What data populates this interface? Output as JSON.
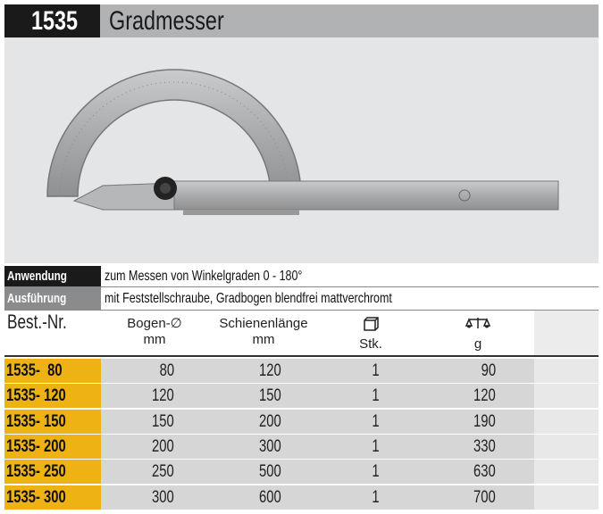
{
  "header": {
    "code": "1535",
    "title": "Gradmesser"
  },
  "info": [
    {
      "label": "Anwendung",
      "value": "zum Messen von Winkelgraden 0 - 180°",
      "color": "#1a1a1a"
    },
    {
      "label": "Ausführung",
      "value": "mit Feststellschraube, Gradbogen blendfrei mattverchromt",
      "color": "#8a8b8d"
    }
  ],
  "columns": {
    "order_no": "Best.-Nr.",
    "arc": "Bogen-∅",
    "arc_unit": "mm",
    "rail": "Schienenlänge",
    "rail_unit": "mm",
    "qty": "Stk.",
    "qty_icon": "box-icon",
    "weight": "g",
    "weight_icon": "scale-icon"
  },
  "rows": [
    {
      "no": "1535-  80",
      "arc": "80",
      "rail": "120",
      "qty": "1",
      "weight": "90"
    },
    {
      "no": "1535- 120",
      "arc": "120",
      "rail": "150",
      "qty": "1",
      "weight": "120"
    },
    {
      "no": "1535- 150",
      "arc": "150",
      "rail": "200",
      "qty": "1",
      "weight": "190"
    },
    {
      "no": "1535- 200",
      "arc": "200",
      "rail": "300",
      "qty": "1",
      "weight": "330"
    },
    {
      "no": "1535- 250",
      "arc": "250",
      "rail": "500",
      "qty": "1",
      "weight": "630"
    },
    {
      "no": "1535- 300",
      "arc": "300",
      "rail": "600",
      "qty": "1",
      "weight": "700"
    }
  ],
  "colors": {
    "accent": "#efb215",
    "row_bg": "#d6d6d6",
    "title_bar": "#b1b2b4"
  }
}
